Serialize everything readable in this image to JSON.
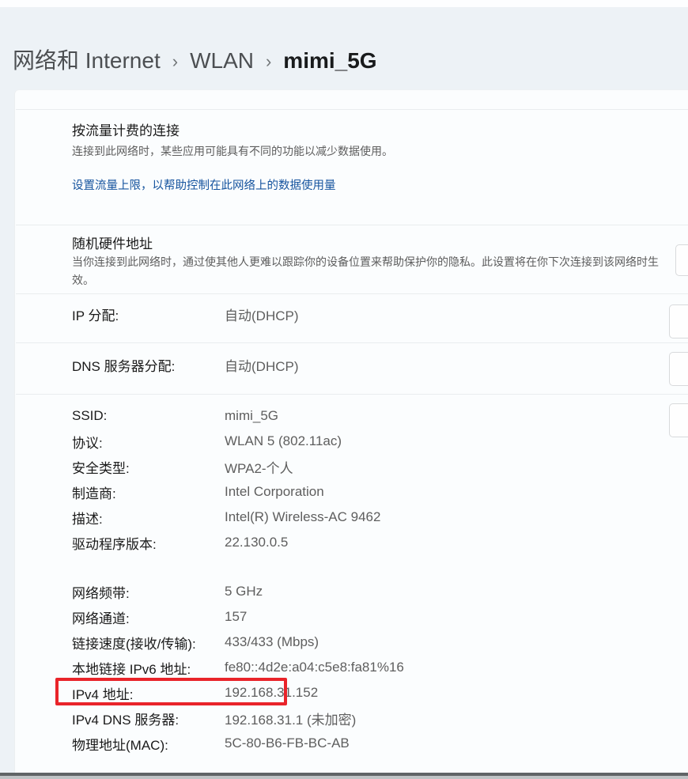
{
  "breadcrumb": {
    "separator": "›",
    "items": [
      {
        "label": "网络和 Internet"
      },
      {
        "label": "WLAN"
      },
      {
        "label": "mimi_5G"
      }
    ]
  },
  "sections": {
    "metered": {
      "title": "按流量计费的连接",
      "description": "连接到此网络时，某些应用可能具有不同的功能以减少数据使用。",
      "link": "设置流量上限，以帮助控制在此网络上的数据使用量"
    },
    "random_hardware": {
      "title": "随机硬件地址",
      "description": "当你连接到此网络时，通过使其他人更难以跟踪你的设备位置来帮助保护你的隐私。此设置将在你下次连接到该网络时生效。"
    },
    "ip_assignment": {
      "label": "IP 分配:",
      "value": "自动(DHCP)"
    },
    "dns_assignment": {
      "label": "DNS 服务器分配:",
      "value": "自动(DHCP)"
    }
  },
  "properties": {
    "group1": [
      {
        "label": "SSID:",
        "value": "mimi_5G"
      },
      {
        "label": "协议:",
        "value": "WLAN 5 (802.11ac)"
      },
      {
        "label": "安全类型:",
        "value": "WPA2-个人"
      },
      {
        "label": "制造商:",
        "value": "Intel Corporation"
      },
      {
        "label": "描述:",
        "value": "Intel(R) Wireless-AC 9462"
      },
      {
        "label": "驱动程序版本:",
        "value": "22.130.0.5"
      }
    ],
    "group2": [
      {
        "label": "网络频带:",
        "value": "5 GHz"
      },
      {
        "label": "网络通道:",
        "value": "157"
      },
      {
        "label": "链接速度(接收/传输):",
        "value": "433/433 (Mbps)"
      },
      {
        "label": "本地链接 IPv6 地址:",
        "value": "fe80::4d2e:a04:c5e8:fa81%16"
      },
      {
        "label": "IPv4 地址:",
        "value": "192.168.31.152"
      },
      {
        "label": "IPv4 DNS 服务器:",
        "value": "192.168.31.1 (未加密)"
      },
      {
        "label": "物理地址(MAC):",
        "value": "5C-80-B6-FB-BC-AB"
      }
    ]
  },
  "colors": {
    "link_blue": "#15539e",
    "annotation_red": "#e9242a",
    "page_background": "#edf2f6",
    "card_background": "#fbfdfe"
  }
}
